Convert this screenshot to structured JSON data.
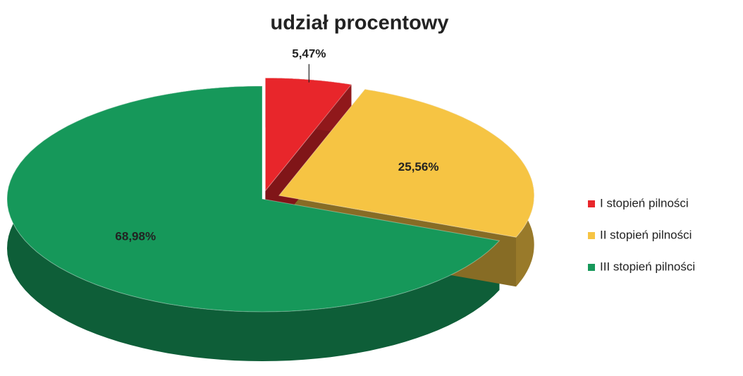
{
  "chart_data": {
    "type": "pie",
    "title": "udział procentowy",
    "categories": [
      "I stopień pilności",
      "II stopień pilności",
      "III stopień pilności"
    ],
    "values": [
      5.47,
      25.56,
      68.98
    ],
    "value_labels": [
      "5,47%",
      "25,56%",
      "68,98%"
    ],
    "colors": [
      "#e8262b",
      "#f6c443",
      "#16985a"
    ],
    "legend": "right"
  }
}
